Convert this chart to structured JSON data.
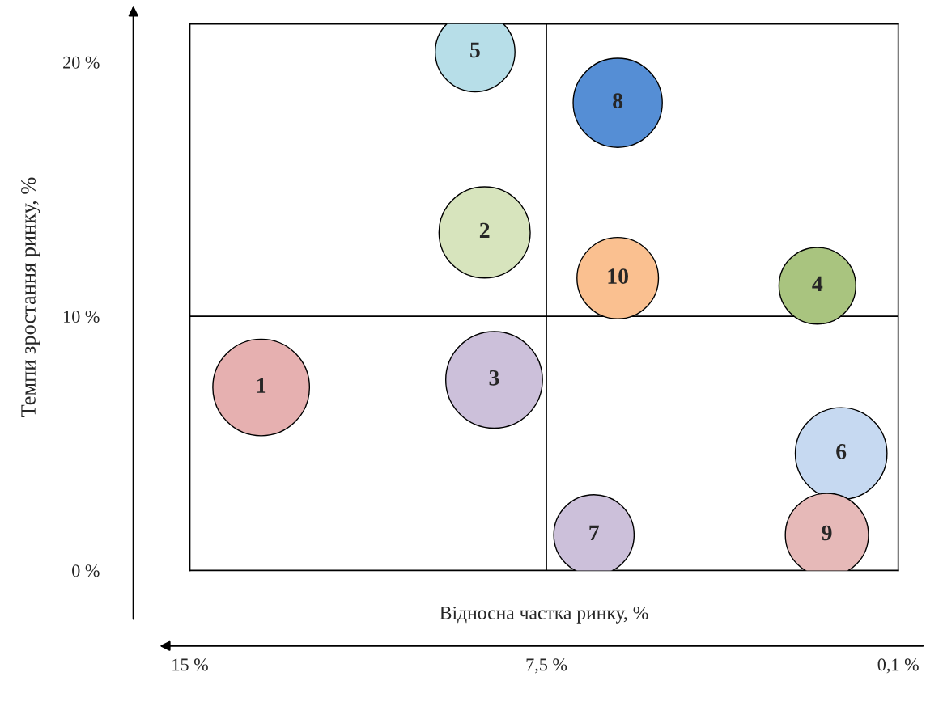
{
  "chart_data": {
    "type": "bubble",
    "xlabel": "Відносна частка ринку, %",
    "ylabel": "Темпи зростання ринку, %",
    "x": [
      13.5,
      8.8,
      8.6,
      1.8,
      9.0,
      1.3,
      6.5,
      6.0,
      1.6,
      6.0
    ],
    "values": [
      7.2,
      13.3,
      7.5,
      11.2,
      20.4,
      4.6,
      1.4,
      18.4,
      1.4,
      11.5
    ],
    "sizes": [
      1,
      0.89,
      1,
      0.63,
      0.68,
      0.9,
      0.69,
      0.85,
      0.74,
      0.71
    ],
    "colors": [
      "#e6b0b0",
      "#d7e4bd",
      "#ccc0da",
      "#a9c47f",
      "#b7dee8",
      "#c6d9f1",
      "#ccc0da",
      "#558ed5",
      "#e6b9b8",
      "#fac090"
    ],
    "annotations": [
      {
        "text": "1",
        "x": 13.5,
        "y": 7.2
      },
      {
        "text": "2",
        "x": 8.8,
        "y": 13.3
      },
      {
        "text": "3",
        "x": 8.6,
        "y": 7.5
      },
      {
        "text": "4",
        "x": 1.8,
        "y": 11.2
      },
      {
        "text": "5",
        "x": 9.0,
        "y": 20.4
      },
      {
        "text": "6",
        "x": 1.3,
        "y": 4.6
      },
      {
        "text": "7",
        "x": 6.5,
        "y": 1.4
      },
      {
        "text": "8",
        "x": 6.0,
        "y": 18.4
      },
      {
        "text": "9",
        "x": 1.6,
        "y": 1.4
      },
      {
        "text": "10",
        "x": 6.0,
        "y": 11.5
      }
    ],
    "ref_lines": [
      {
        "axis": "x",
        "value": 7.5,
        "color": "#000000"
      },
      {
        "axis": "y",
        "value": 10,
        "color": "#000000"
      }
    ],
    "xlim": [
      15,
      0.1
    ],
    "xticks": [
      {
        "value": 15,
        "label": "15 %"
      },
      {
        "value": 7.5,
        "label": "7,5 %"
      },
      {
        "value": 0.1,
        "label": "0,1 %"
      }
    ],
    "ylim": [
      0,
      21.5
    ],
    "yticks": [
      {
        "value": 0,
        "label": "0 %"
      },
      {
        "value": 10,
        "label": "10 %"
      },
      {
        "value": 20,
        "label": "20 %"
      }
    ],
    "grid": false,
    "legend": false
  }
}
